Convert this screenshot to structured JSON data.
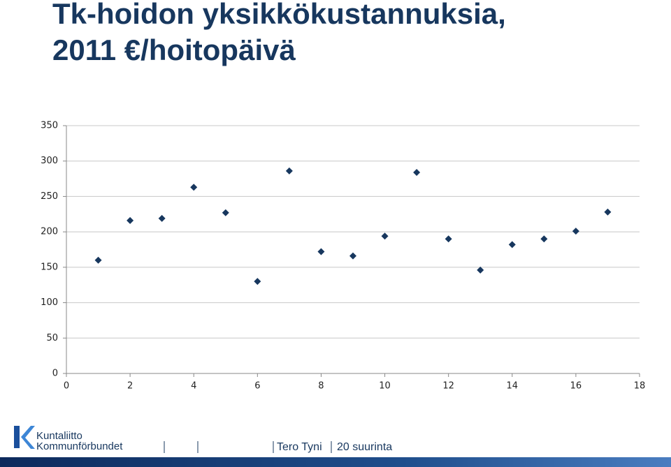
{
  "chart_data": {
    "type": "scatter",
    "title": [
      "Tk-hoidon yksikkökustannuksia,",
      "2011 €/hoitopäivä"
    ],
    "x": [
      1,
      2,
      3,
      4,
      5,
      6,
      7,
      8,
      9,
      10,
      11,
      12,
      13,
      14,
      15,
      16,
      17
    ],
    "values": [
      160,
      216,
      219,
      263,
      227,
      130,
      286,
      172,
      166,
      194,
      284,
      190,
      146,
      182,
      190,
      201,
      228
    ],
    "color": "#17375e",
    "xlim": [
      0,
      18
    ],
    "xticks": [
      0,
      2,
      4,
      6,
      8,
      10,
      12,
      14,
      16,
      18
    ],
    "ylim": [
      0,
      350
    ],
    "yticks": [
      0,
      50,
      100,
      150,
      200,
      250,
      300,
      350
    ],
    "grid": true
  },
  "footer": {
    "logo_lines": [
      "Kuntaliitto",
      "Kommunförbundet"
    ],
    "items": [
      "Tero Tyni",
      "20 suurinta"
    ]
  }
}
